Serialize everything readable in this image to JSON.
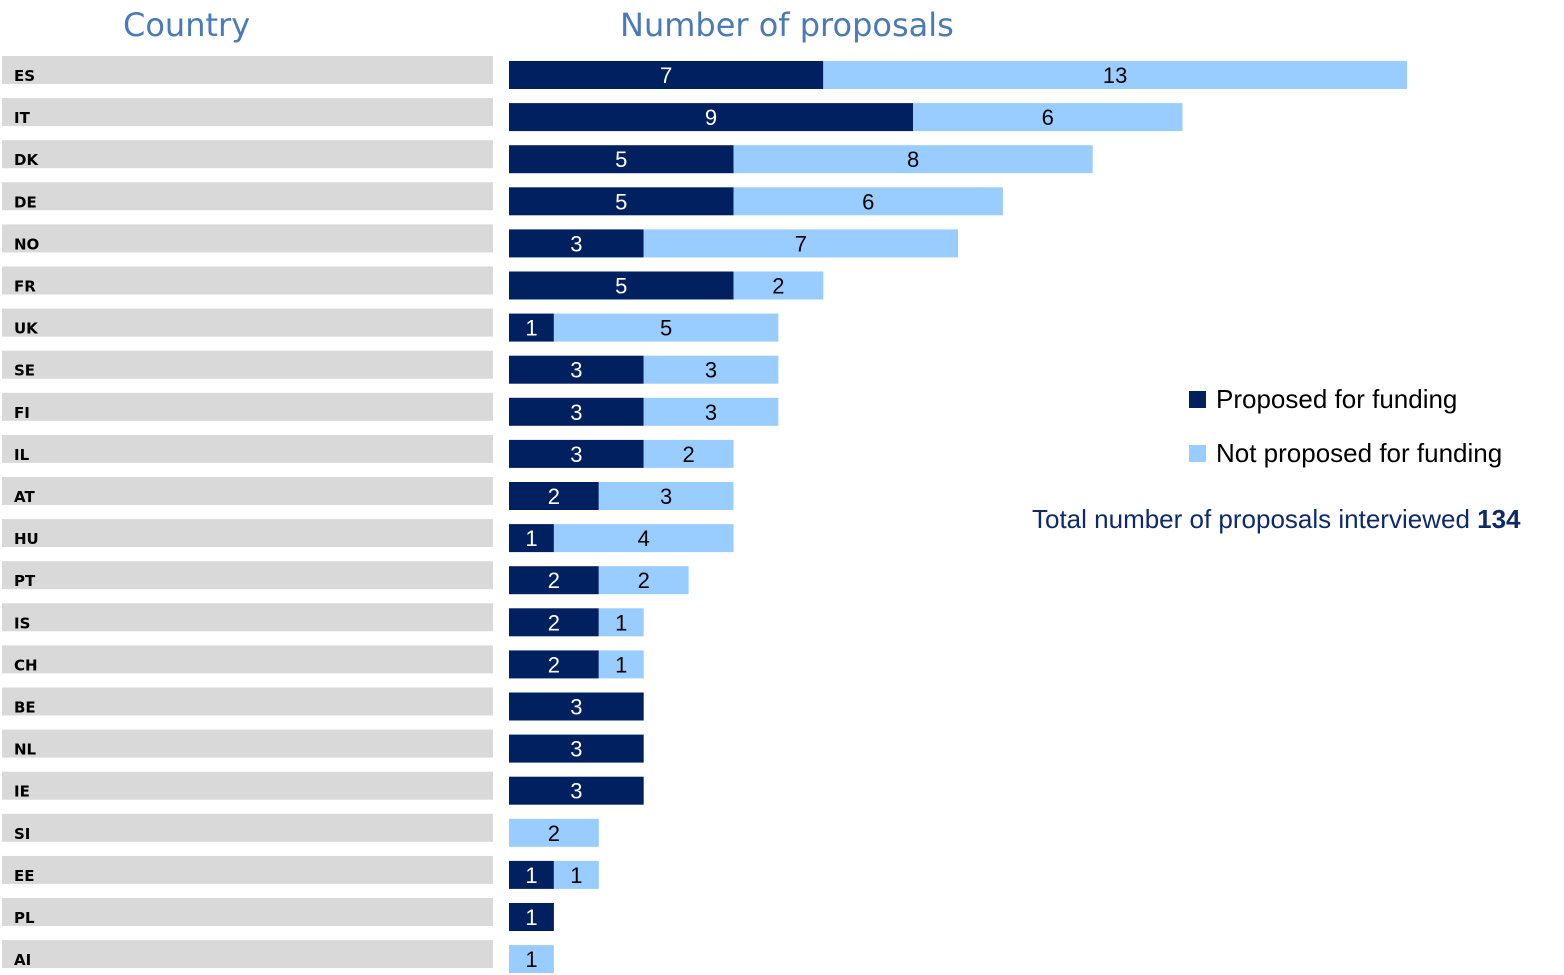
{
  "headers": {
    "country": "Country",
    "proposals": "Number of proposals"
  },
  "colors": {
    "funded": "#002060",
    "not_funded": "#99ccff",
    "row_bg": "#d9d9d9"
  },
  "legend": {
    "funded": "Proposed for funding",
    "not_funded": "Not proposed for funding"
  },
  "total": {
    "label": "Total number of proposals interviewed",
    "value": "134"
  },
  "chart_data": {
    "type": "bar",
    "orientation": "horizontal",
    "stacked": true,
    "categories": [
      "ES",
      "IT",
      "DK",
      "DE",
      "NO",
      "FR",
      "UK",
      "SE",
      "FI",
      "IL",
      "AT",
      "HU",
      "PT",
      "IS",
      "CH",
      "BE",
      "NL",
      "IE",
      "SI",
      "EE",
      "PL",
      "AI"
    ],
    "series": [
      {
        "name": "Proposed for funding",
        "values": [
          7,
          9,
          5,
          5,
          3,
          5,
          1,
          3,
          3,
          3,
          2,
          1,
          2,
          2,
          2,
          3,
          3,
          3,
          0,
          1,
          1,
          0
        ]
      },
      {
        "name": "Not proposed for funding",
        "values": [
          13,
          6,
          8,
          6,
          7,
          2,
          5,
          3,
          3,
          2,
          3,
          4,
          2,
          1,
          1,
          0,
          0,
          0,
          2,
          1,
          0,
          1
        ]
      }
    ],
    "xlabel": "Number of proposals",
    "ylabel": "Country",
    "legend_position": "right"
  }
}
